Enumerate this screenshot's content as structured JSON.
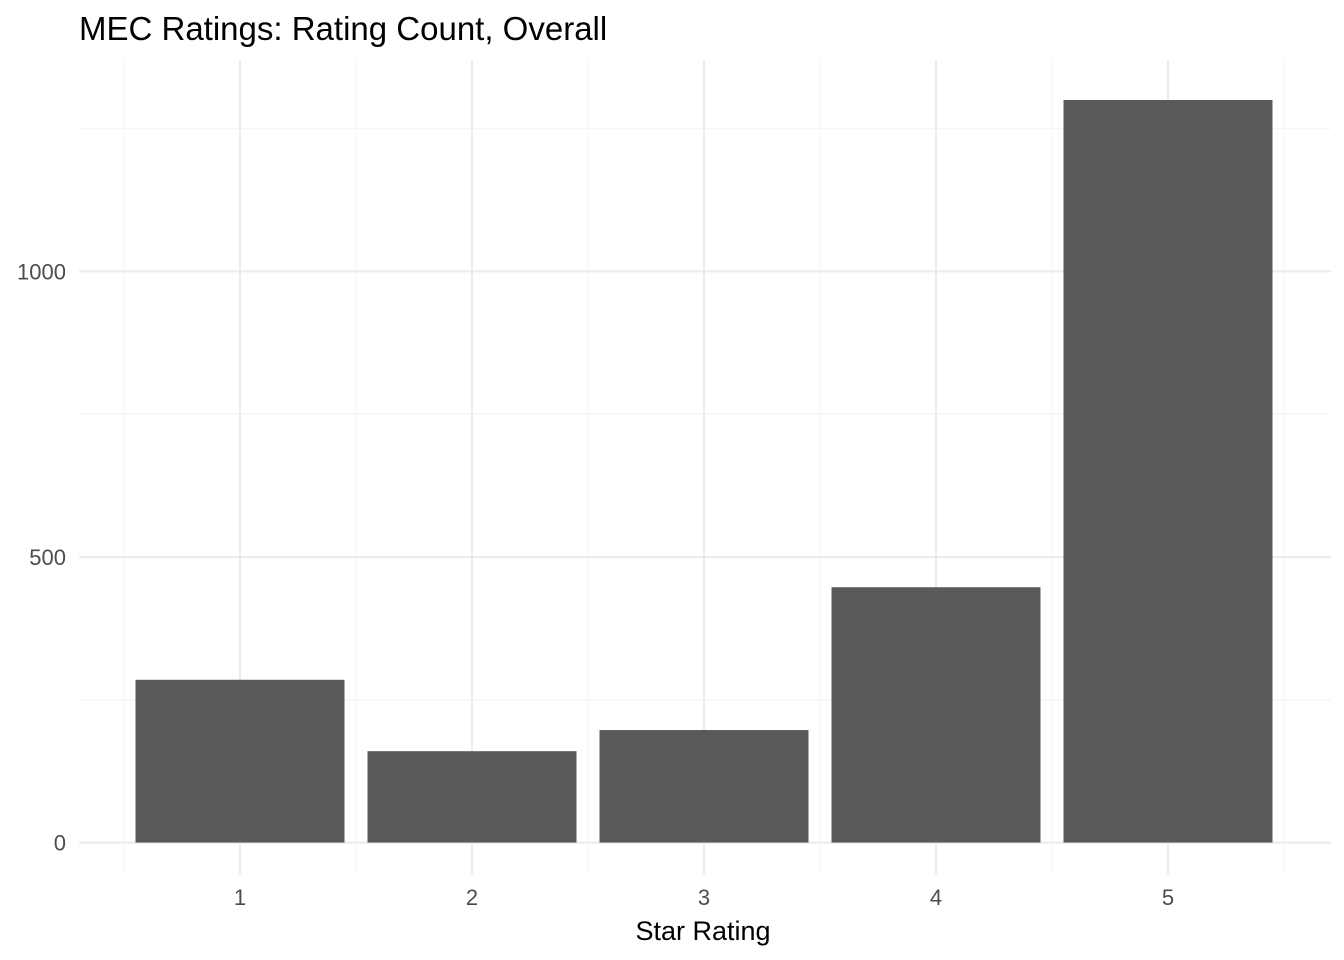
{
  "chart_data": {
    "type": "bar",
    "title": "MEC Ratings: Rating Count, Overall",
    "xlabel": "Star Rating",
    "ylabel": "",
    "categories": [
      "1",
      "2",
      "3",
      "4",
      "5"
    ],
    "values": [
      285,
      160,
      197,
      447,
      1300
    ],
    "ylim": [
      -55,
      1370
    ],
    "yticks": [
      0,
      500,
      1000
    ],
    "ytick_labels": [
      "0",
      "500",
      "1000"
    ],
    "grid": true,
    "legend": "none",
    "bar_color": "#595959",
    "grid_major_color": "#ebebeb",
    "grid_minor_color": "#f5f5f5"
  }
}
